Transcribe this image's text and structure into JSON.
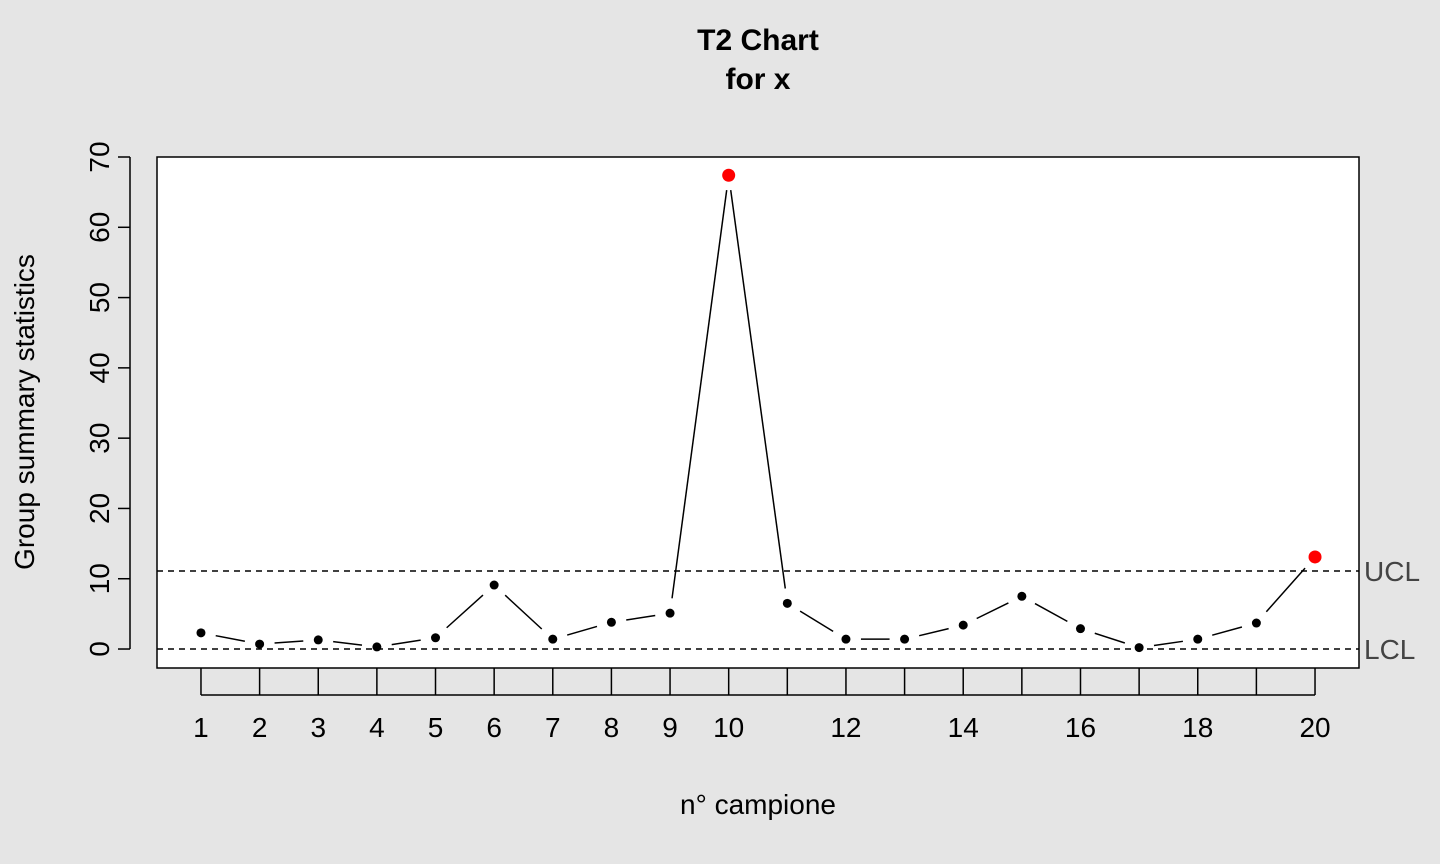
{
  "chart_data": {
    "type": "line",
    "title": "T2 Chart",
    "subtitle": "for x",
    "xlabel": "n° campione",
    "ylabel": "Group summary statistics",
    "xlim": [
      0.25,
      20.75
    ],
    "ylim": [
      -2.7,
      70
    ],
    "yticks": [
      0,
      10,
      20,
      30,
      40,
      50,
      60,
      70
    ],
    "xticks": [
      1,
      2,
      3,
      4,
      5,
      6,
      7,
      8,
      9,
      10,
      11,
      12,
      13,
      14,
      15,
      16,
      17,
      18,
      19,
      20
    ],
    "xtick_labels": [
      "1",
      "2",
      "3",
      "4",
      "5",
      "6",
      "7",
      "8",
      "9",
      "10",
      "",
      "12",
      "",
      "14",
      "",
      "16",
      "",
      "18",
      "",
      "20"
    ],
    "x": [
      1,
      2,
      3,
      4,
      5,
      6,
      7,
      8,
      9,
      10,
      11,
      12,
      13,
      14,
      15,
      16,
      17,
      18,
      19,
      20
    ],
    "values": [
      2.3,
      0.7,
      1.3,
      0.3,
      1.6,
      9.1,
      1.4,
      3.8,
      5.1,
      67.4,
      6.5,
      1.4,
      1.4,
      3.4,
      7.5,
      2.9,
      0.2,
      1.4,
      3.7,
      13.1
    ],
    "out_of_control": [
      10,
      20
    ],
    "limits": [
      {
        "label": "UCL",
        "value": 11.1
      },
      {
        "label": "LCL",
        "value": 0
      }
    ],
    "colors": {
      "background": "#e5e5e5",
      "panel": "#ffffff",
      "point": "#000000",
      "violation": "#ff0000",
      "limit_label": "#444444"
    }
  }
}
